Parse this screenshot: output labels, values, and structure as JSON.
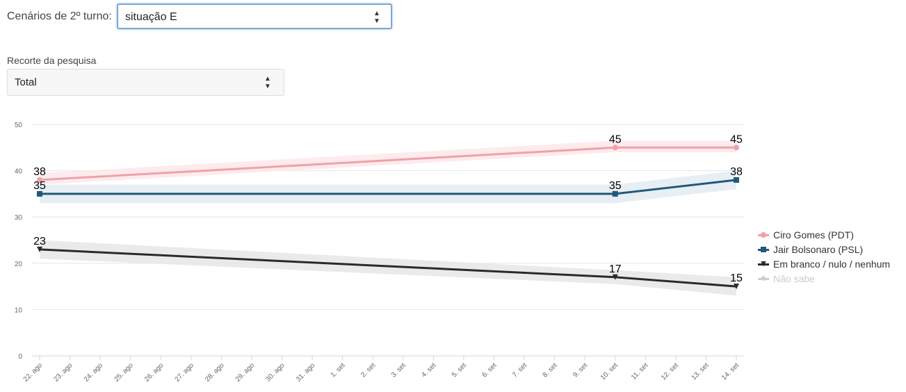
{
  "controls": {
    "scenario_label": "Cenários de 2º turno:",
    "scenario_value": "situação E",
    "recorte_label": "Recorte da pesquisa",
    "recorte_value": "Total",
    "arrow_up": "▲",
    "arrow_down": "▼"
  },
  "chart_data": {
    "type": "line",
    "title": "",
    "xlabel": "",
    "ylabel": "",
    "ylim": [
      0,
      50
    ],
    "yticks": [
      0,
      10,
      20,
      30,
      40,
      50
    ],
    "categories": [
      "22. ago",
      "23. ago",
      "24. ago",
      "25. ago",
      "26. ago",
      "27. ago",
      "28. ago",
      "29. ago",
      "30. ago",
      "31. ago",
      "1. set",
      "2. set",
      "3. set",
      "4. set",
      "5. set",
      "6. set",
      "7. set",
      "8. set",
      "9. set",
      "10. set",
      "11. set",
      "12. set",
      "13. set",
      "14. set"
    ],
    "grid": true,
    "legend_position": "right",
    "series": [
      {
        "name": "Ciro Gomes (PDT)",
        "color": "#f0a1a8",
        "band_color": "#fde7ea",
        "marker": "circle",
        "visible": true,
        "points": [
          {
            "x": "22. ago",
            "y": 38
          },
          {
            "x": "10. set",
            "y": 45
          },
          {
            "x": "14. set",
            "y": 45
          }
        ],
        "band": [
          [
            37,
            39.5
          ],
          [
            44,
            46.5
          ],
          [
            44,
            46.5
          ]
        ]
      },
      {
        "name": "Jair Bolsonaro (PSL)",
        "color": "#1f5a7a",
        "band_color": "#e3ebf2",
        "marker": "square",
        "visible": true,
        "points": [
          {
            "x": "22. ago",
            "y": 35
          },
          {
            "x": "10. set",
            "y": 35
          },
          {
            "x": "14. set",
            "y": 38
          }
        ],
        "band": [
          [
            33,
            37
          ],
          [
            33,
            37
          ],
          [
            36,
            40
          ]
        ]
      },
      {
        "name": "Em branco / nulo / nenhum",
        "color": "#2a2a2a",
        "band_color": "#e6e6e6",
        "marker": "triangle-down",
        "visible": true,
        "points": [
          {
            "x": "22. ago",
            "y": 23
          },
          {
            "x": "10. set",
            "y": 17
          },
          {
            "x": "14. set",
            "y": 15
          }
        ],
        "band": [
          [
            21,
            25
          ],
          [
            15.5,
            18.5
          ],
          [
            13,
            17
          ]
        ]
      },
      {
        "name": "Não sabe",
        "color": "#cccccc",
        "band_color": "#f2f2f2",
        "marker": "diamond",
        "visible": false,
        "points": [],
        "band": []
      }
    ]
  }
}
